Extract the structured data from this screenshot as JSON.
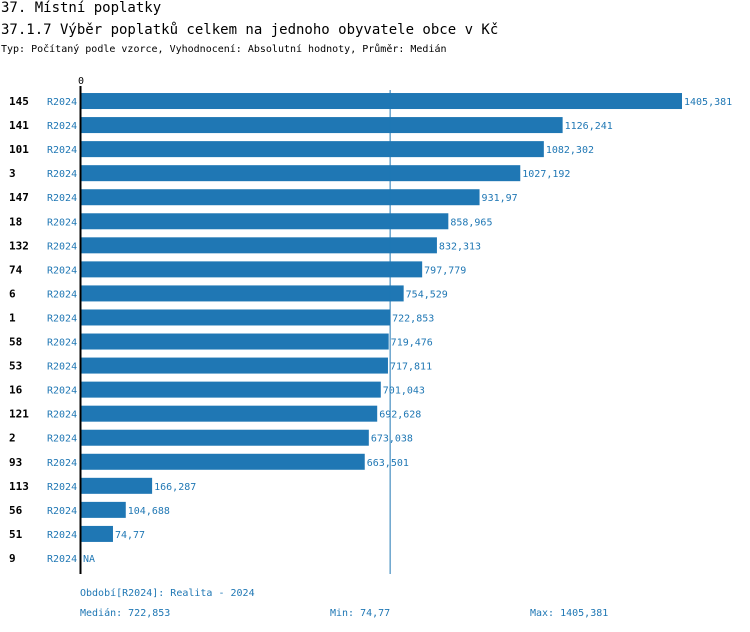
{
  "header": {
    "title": "37. Místní poplatky",
    "subtitle": "37.1.7 Výběr poplatků celkem na jednoho obyvatele obce v  Kč",
    "type_line": "Typ: Počítaný podle vzorce, Vyhodnocení: Absolutní hodnoty, Průměr: Medián"
  },
  "footer": {
    "period": "Období[R2024]: Realita - 2024",
    "median": "Medián: 722,853",
    "min": "Min: 74,77",
    "max": "Max: 1405,381"
  },
  "colors": {
    "bar": "#1f77b4",
    "text": "#1f77b4"
  },
  "chart_data": {
    "type": "bar",
    "orientation": "horizontal",
    "x_axis_zero_label": "0",
    "series_label": "R2024",
    "median": 722.853,
    "xlim": [
      0,
      1405.381
    ],
    "categories": [
      "145",
      "141",
      "101",
      "3",
      "147",
      "18",
      "132",
      "74",
      "6",
      "1",
      "58",
      "53",
      "16",
      "121",
      "2",
      "93",
      "113",
      "56",
      "51",
      "9"
    ],
    "values": [
      1405.381,
      1126.241,
      1082.302,
      1027.192,
      931.97,
      858.965,
      832.313,
      797.779,
      754.529,
      722.853,
      719.476,
      717.811,
      701.043,
      692.628,
      673.038,
      663.501,
      166.287,
      104.688,
      74.77,
      null
    ],
    "value_labels": [
      "1405,381",
      "1126,241",
      "1082,302",
      "1027,192",
      "931,97",
      "858,965",
      "832,313",
      "797,779",
      "754,529",
      "722,853",
      "719,476",
      "717,811",
      "701,043",
      "692,628",
      "673,038",
      "663,501",
      "166,287",
      "104,688",
      "74,77",
      "NA"
    ]
  }
}
